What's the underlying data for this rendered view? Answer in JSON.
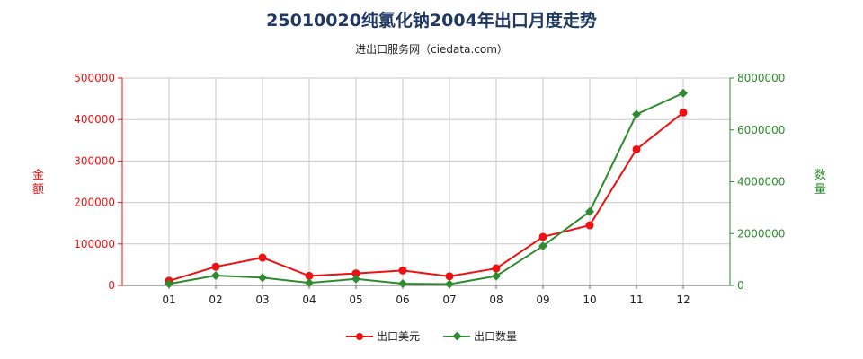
{
  "title": "25010020纯氯化钠2004年出口月度走势",
  "subtitle": "进出口服务网（ciedata.com）",
  "chart_data": {
    "type": "line",
    "categories": [
      "01",
      "02",
      "03",
      "04",
      "05",
      "06",
      "07",
      "08",
      "09",
      "10",
      "11",
      "12"
    ],
    "y_left": {
      "label": "金额",
      "ylim": [
        0,
        500000
      ],
      "ticks": [
        "0",
        "100000",
        "200000",
        "300000",
        "400000",
        "500000"
      ],
      "tick_values": [
        0,
        100000,
        200000,
        300000,
        400000,
        500000
      ],
      "color": "#ee1111"
    },
    "y_right": {
      "label": "数量",
      "ylim": [
        0,
        8000000
      ],
      "ticks": [
        "0",
        "2000000",
        "4000000",
        "6000000",
        "8000000"
      ],
      "tick_values": [
        0,
        2000000,
        4000000,
        6000000,
        8000000
      ],
      "color": "#2e8b2e"
    },
    "series": [
      {
        "name": "出口美元",
        "axis": "left",
        "color": "#ee1111",
        "marker": "circle",
        "values": [
          11000,
          45000,
          67000,
          23000,
          29000,
          36000,
          22000,
          41000,
          117000,
          145000,
          328000,
          417000
        ]
      },
      {
        "name": "出口数量",
        "axis": "right",
        "color": "#2e8b2e",
        "marker": "diamond",
        "values": [
          60000,
          380000,
          300000,
          100000,
          250000,
          70000,
          50000,
          360000,
          1520000,
          2850000,
          6600000,
          7420000
        ]
      }
    ],
    "grid": true,
    "legend_position": "bottom"
  }
}
